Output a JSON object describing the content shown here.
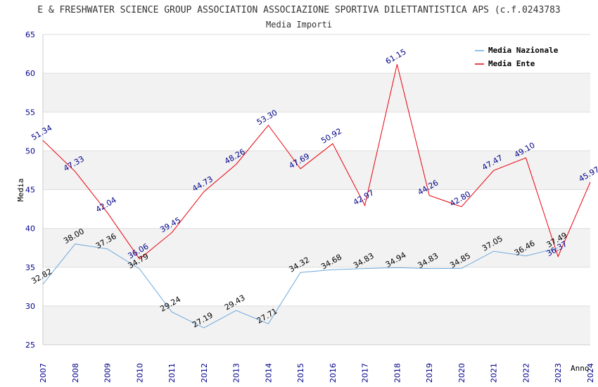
{
  "chart_data": {
    "type": "line",
    "title": "E & FRESHWATER SCIENCE GROUP ASSOCIATION ASSOCIAZIONE SPORTIVA DILETTANTISTICA APS (c.f.0243783",
    "subtitle": "Media Importi",
    "xlabel": "Anno",
    "ylabel": "Media",
    "ylim": [
      25,
      65
    ],
    "yticks": [
      25,
      30,
      35,
      40,
      45,
      50,
      55,
      60,
      65
    ],
    "categories": [
      "2007",
      "2008",
      "2009",
      "2010",
      "2011",
      "2012",
      "2013",
      "2014",
      "2015",
      "2016",
      "2017",
      "2018",
      "2019",
      "2020",
      "2021",
      "2022",
      "2023",
      "2024"
    ],
    "grid": true,
    "legend_position": "top-right",
    "series": [
      {
        "name": "Media Nazionale",
        "color": "#6fa8dc",
        "label_color": "#000000",
        "values": [
          32.82,
          38.0,
          37.36,
          34.79,
          29.24,
          27.19,
          29.43,
          27.71,
          34.32,
          34.68,
          34.83,
          34.94,
          34.83,
          34.85,
          37.05,
          36.46,
          37.49,
          null
        ],
        "labels": [
          "32.82",
          "38.00",
          "37.36",
          "34.79",
          "29.24",
          "27.19",
          "29.43",
          "27.71",
          "34.32",
          "34.68",
          "34.83",
          "34.94",
          "34.83",
          "34.85",
          "37.05",
          "36.46",
          "37.49",
          ""
        ]
      },
      {
        "name": "Media Ente",
        "color": "#e8000b",
        "label_color": "#00008b",
        "values": [
          51.34,
          47.33,
          42.04,
          36.06,
          39.45,
          44.73,
          48.26,
          53.3,
          47.69,
          50.92,
          42.97,
          61.15,
          44.26,
          42.8,
          47.47,
          49.1,
          36.37,
          45.97
        ],
        "labels": [
          "51.34",
          "47.33",
          "42.04",
          "36.06",
          "39.45",
          "44.73",
          "48.26",
          "53.30",
          "47.69",
          "50.92",
          "42.97",
          "61.15",
          "44.26",
          "42.80",
          "47.47",
          "49.10",
          "36.37",
          "45.97"
        ]
      }
    ]
  }
}
